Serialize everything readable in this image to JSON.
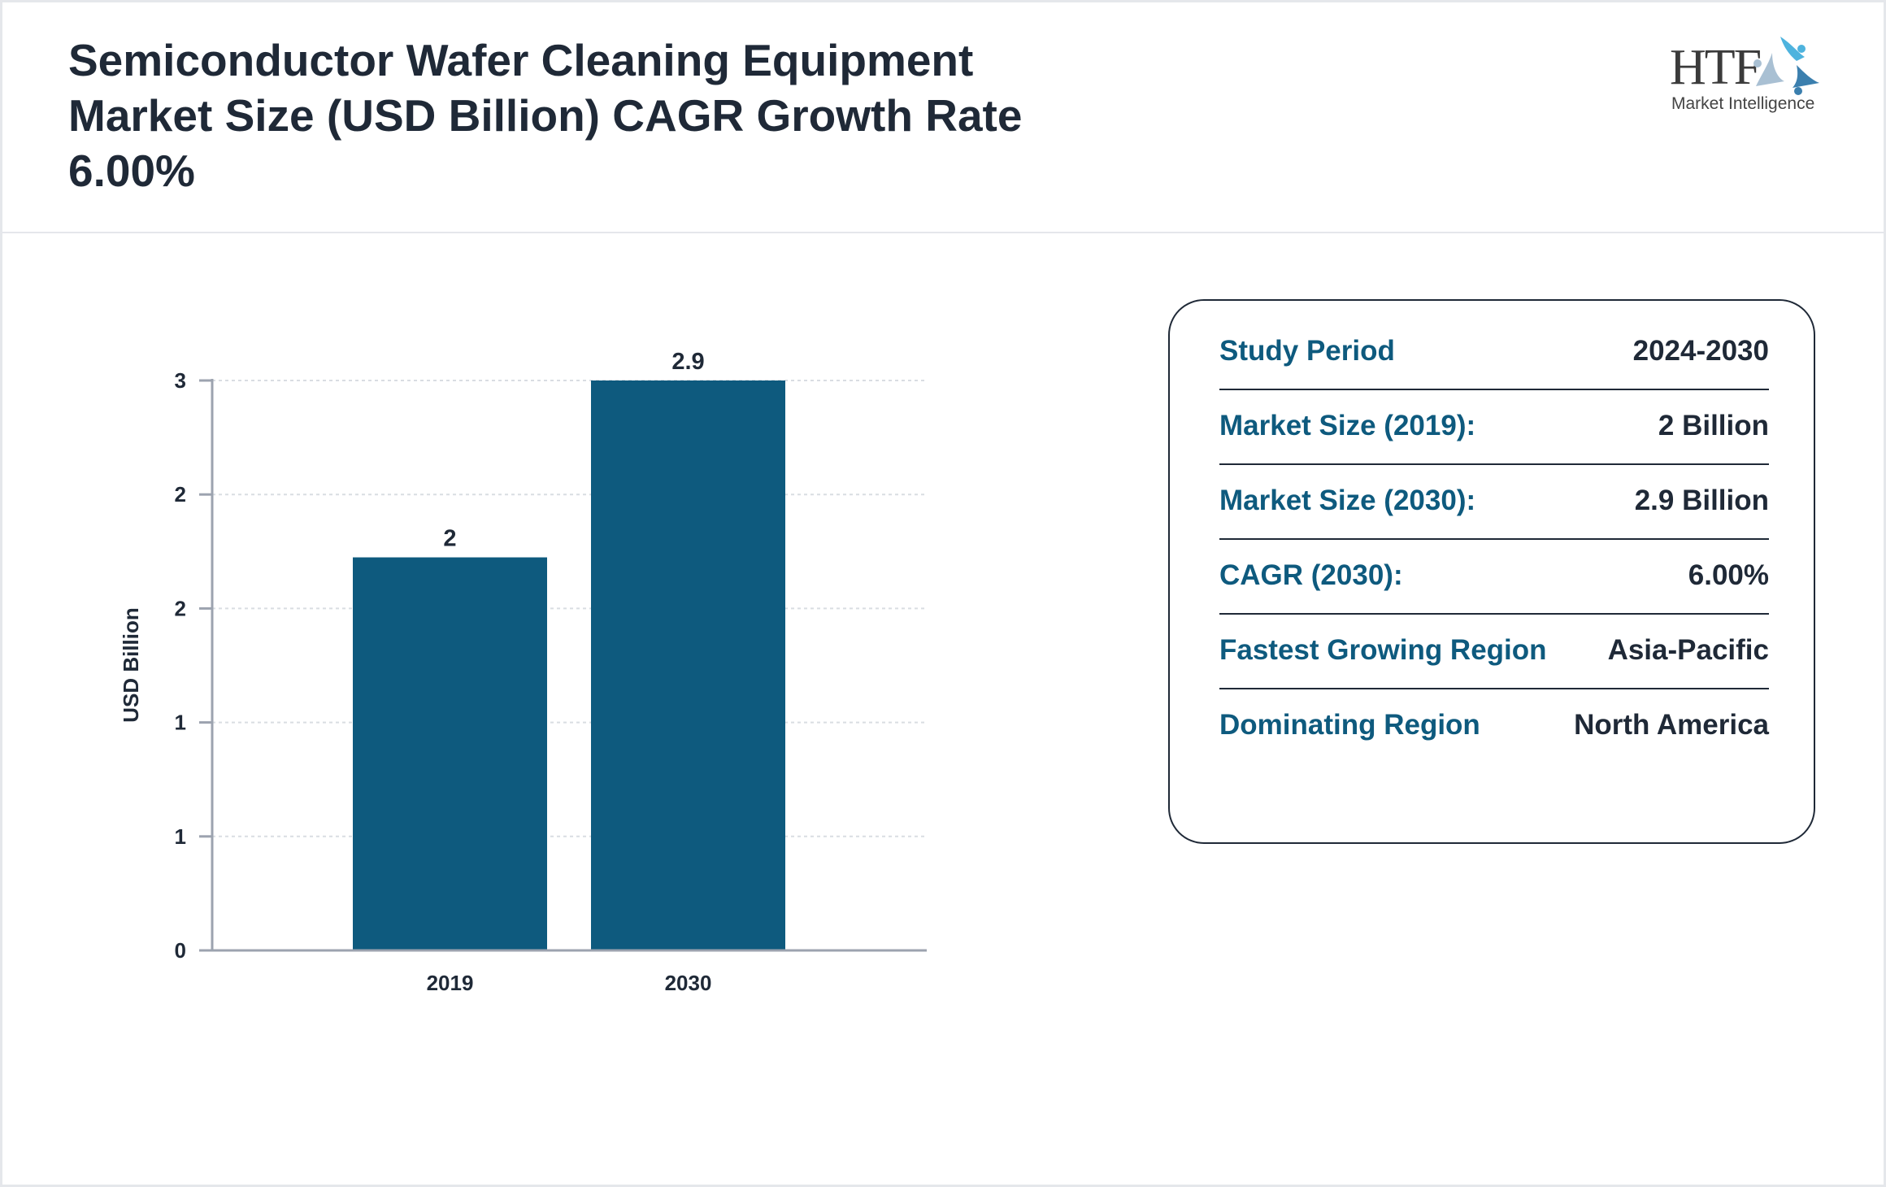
{
  "header": {
    "title": "Semiconductor Wafer Cleaning Equipment Market Size (USD Billion) CAGR Growth Rate 6.00%",
    "logo": {
      "main": "HTF",
      "sub": "Market Intelligence"
    }
  },
  "chart_data": {
    "type": "bar",
    "categories": [
      "2019",
      "2030"
    ],
    "values": [
      2,
      2.9
    ],
    "data_labels": [
      "2",
      "2.9"
    ],
    "ylabel": "USD Billion",
    "ylim": [
      0,
      2.9
    ],
    "yticks": [
      0,
      0.58,
      1.16,
      1.74,
      2.32,
      2.9
    ],
    "ytick_labels": [
      "0",
      "1",
      "1",
      "2",
      "2",
      "3"
    ],
    "grid": true,
    "bar_color": "#0e5a7e"
  },
  "info": {
    "rows": [
      {
        "label": "Study Period",
        "value": "2024-2030"
      },
      {
        "label": "Market Size (2019):",
        "value": "2 Billion"
      },
      {
        "label": "Market Size (2030):",
        "value": "2.9 Billion"
      },
      {
        "label": "CAGR (2030):",
        "value": "6.00%"
      },
      {
        "label": "Fastest Growing Region",
        "value": "Asia-Pacific"
      },
      {
        "label": "Dominating Region",
        "value": "North America"
      }
    ]
  }
}
